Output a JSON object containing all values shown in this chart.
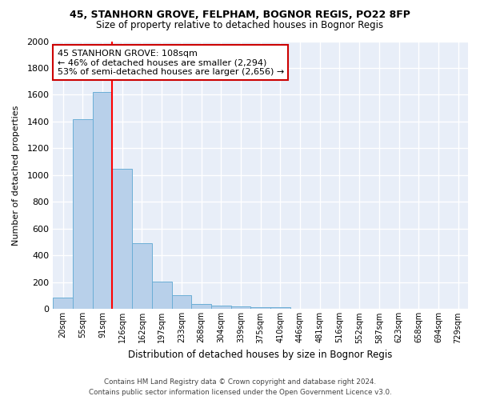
{
  "title": "45, STANHORN GROVE, FELPHAM, BOGNOR REGIS, PO22 8FP",
  "subtitle": "Size of property relative to detached houses in Bognor Regis",
  "xlabel": "Distribution of detached houses by size in Bognor Regis",
  "ylabel": "Number of detached properties",
  "bin_labels": [
    "20sqm",
    "55sqm",
    "91sqm",
    "126sqm",
    "162sqm",
    "197sqm",
    "233sqm",
    "268sqm",
    "304sqm",
    "339sqm",
    "375sqm",
    "410sqm",
    "446sqm",
    "481sqm",
    "516sqm",
    "552sqm",
    "587sqm",
    "623sqm",
    "658sqm",
    "694sqm",
    "729sqm"
  ],
  "bar_values": [
    85,
    1420,
    1620,
    1050,
    490,
    205,
    105,
    40,
    25,
    20,
    15,
    15,
    2,
    2,
    2,
    0,
    0,
    0,
    0,
    0,
    0
  ],
  "bar_color": "#b8d0ea",
  "bar_edge_color": "#6baed6",
  "background_color": "#e8eef8",
  "grid_color": "#ffffff",
  "fig_background": "#ffffff",
  "red_line_x": 2.5,
  "annotation_text": "45 STANHORN GROVE: 108sqm\n← 46% of detached houses are smaller (2,294)\n53% of semi-detached houses are larger (2,656) →",
  "annotation_box_facecolor": "#ffffff",
  "annotation_box_edgecolor": "#cc0000",
  "footer_line1": "Contains HM Land Registry data © Crown copyright and database right 2024.",
  "footer_line2": "Contains public sector information licensed under the Open Government Licence v3.0.",
  "ylim": [
    0,
    2000
  ],
  "yticks": [
    0,
    200,
    400,
    600,
    800,
    1000,
    1200,
    1400,
    1600,
    1800,
    2000
  ]
}
